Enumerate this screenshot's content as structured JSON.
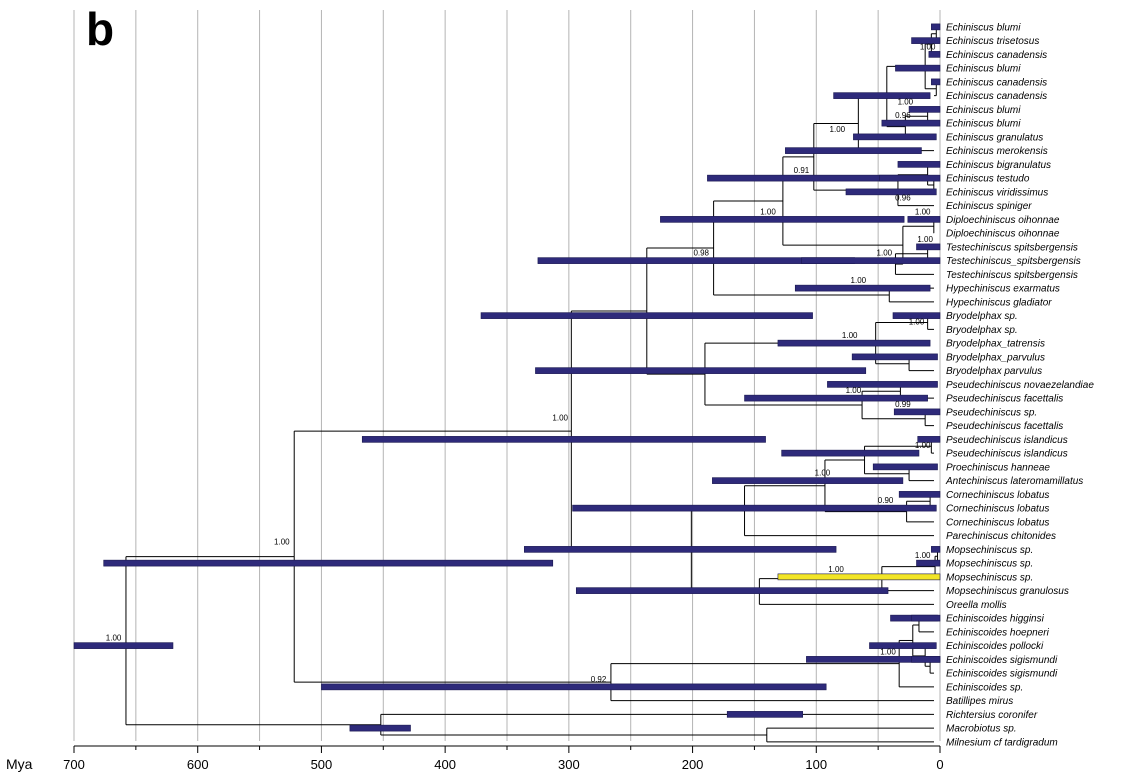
{
  "panel_label": "b",
  "axis": {
    "unit_label": "Mya",
    "ticks": [
      700,
      600,
      500,
      400,
      300,
      200,
      100,
      0
    ]
  },
  "taxa": [
    "Echiniscus blumi",
    "Echiniscus trisetosus",
    "Echiniscus canadensis",
    "Echiniscus blumi",
    "Echiniscus canadensis",
    "Echiniscus canadensis",
    "Echiniscus blumi",
    "Echiniscus blumi",
    "Echiniscus granulatus",
    "Echiniscus merokensis",
    "Echiniscus bigranulatus",
    "Echiniscus testudo",
    "Echiniscus viridissimus",
    "Echiniscus spiniger",
    "Diploechiniscus oihonnae",
    "Diploechiniscus oihonnae",
    "Testechiniscus spitsbergensis",
    "Testechiniscus_spitsbergensis",
    "Testechiniscus spitsbergensis",
    "Hypechiniscus exarmatus",
    "Hypechiniscus gladiator",
    "Bryodelphax sp.",
    "Bryodelphax sp.",
    "Bryodelphax_tatrensis",
    "Bryodelphax_parvulus",
    "Bryodelphax parvulus",
    "Pseudechiniscus novaezelandiae",
    "Pseudechiniscus facettalis",
    "Pseudechiniscus sp.",
    "Pseudechiniscus facettalis",
    "Pseudechiniscus islandicus",
    "Pseudechiniscus islandicus",
    "Proechiniscus hanneae",
    "Antechiniscus lateromamillatus",
    "Cornechiniscus lobatus",
    "Cornechiniscus lobatus",
    "Cornechiniscus lobatus",
    "Parechiniscus chitonides",
    "Mopsechiniscus sp.",
    "Mopsechiniscus sp.",
    "Mopsechiniscus sp.",
    "Mopsechiniscus granulosus",
    "Oreella mollis",
    "Echiniscoides higginsi",
    "Echiniscoides hoepneri",
    "Echiniscoides pollocki",
    "Echiniscoides sigismundi",
    "Echiniscoides sigismundi",
    "Echiniscoides sp.",
    "Batillipes mirus",
    "Richtersius coronifer",
    "Macrobiotus sp.",
    "Milnesium cf tardigradum"
  ],
  "colors": {
    "bar_fill": "#2e2a7a",
    "bar_highlight": "#f2e526",
    "branch": "#000000",
    "gridline": "#b4b4b4"
  },
  "nodes": [
    {
      "id": "root",
      "age": 658,
      "hpd": [
        700,
        620
      ],
      "support": "1.00",
      "children": [
        "ingroup",
        "outgroup"
      ]
    },
    {
      "id": "outgroup",
      "age": 452,
      "hpd": [
        477,
        428
      ],
      "support": "",
      "children": [
        "t50",
        "eutar"
      ]
    },
    {
      "id": "eutar",
      "age": 140,
      "hpd": [
        172,
        111
      ],
      "support": "",
      "children": [
        "t51",
        "t52"
      ]
    },
    {
      "id": "ingroup",
      "age": 522,
      "hpd": [
        500,
        92
      ],
      "support": "",
      "children": [
        "echiniscid",
        "arthrotar"
      ]
    },
    {
      "id": "arthrotar",
      "age": 266,
      "hpd": [
        500,
        92
      ],
      "support": "0.92",
      "children": [
        "echiniscoidea",
        "t49"
      ]
    },
    {
      "id": "echiniscoidea",
      "age": 33,
      "hpd": [
        108,
        0
      ],
      "support": "",
      "children": [
        "ech1",
        "t48"
      ]
    },
    {
      "id": "ech1",
      "age": 22,
      "hpd": [
        57,
        3
      ],
      "support": "1.00",
      "children": [
        "t45",
        "ech2"
      ]
    },
    {
      "id": "ech2",
      "age": 8,
      "hpd": [
        23,
        0
      ],
      "support": "",
      "children": [
        "t46",
        "t47"
      ]
    },
    {
      "id": "ech3",
      "age": 17,
      "hpd": [
        40,
        2
      ],
      "support": "",
      "children": [
        "t43",
        "t44"
      ]
    },
    {
      "id": "echiniscid",
      "age": 298,
      "hpd": [
        467,
        141
      ],
      "support": "1.00",
      "children": [
        "upper",
        "mid"
      ]
    },
    {
      "id": "upper",
      "age": 237,
      "hpd": [
        371,
        103
      ],
      "support": "",
      "children": [
        "echin_grp",
        "bryo_grp"
      ]
    },
    {
      "id": "echin_grp",
      "age": 183,
      "hpd": [
        325,
        69
      ],
      "support": "0.98",
      "children": [
        "echin_core",
        "hyp"
      ]
    },
    {
      "id": "echin_core",
      "age": 127,
      "hpd": [
        226,
        29
      ],
      "support": "1.00",
      "children": [
        "echin_main",
        "diplo"
      ]
    },
    {
      "id": "echin_main",
      "age": 102,
      "hpd": [
        188,
        34
      ],
      "support": "0.91",
      "children": [
        "ech_a",
        "ech_b"
      ]
    },
    {
      "id": "ech_a",
      "age": 66,
      "hpd": [
        125,
        15
      ],
      "support": "",
      "children": [
        "ech_a1",
        "ech_a2"
      ]
    },
    {
      "id": "ech_a1",
      "age": 43,
      "hpd": [
        86,
        8
      ],
      "support": "",
      "children": [
        "ech_blumi_clade",
        "ech_a3"
      ]
    },
    {
      "id": "ech_blumi_clade",
      "age": 12,
      "hpd": [
        36,
        0
      ],
      "support": "",
      "children": [
        "ech_top",
        "ech_can"
      ]
    },
    {
      "id": "ech_top",
      "age": 7,
      "hpd": [
        23,
        0
      ],
      "support": "",
      "children": [
        "ech_top1",
        "t2"
      ]
    },
    {
      "id": "ech_top1",
      "age": 3,
      "hpd": [
        7,
        0
      ],
      "support": "",
      "children": [
        "t0",
        "t1"
      ]
    },
    {
      "id": "ech_can",
      "age": 3,
      "hpd": [
        7,
        0
      ],
      "support": "",
      "children": [
        "t4",
        "t5"
      ]
    },
    {
      "id": "ech_a3",
      "age": 28,
      "hpd": [
        70,
        3
      ],
      "support": "1.00",
      "children": [
        "ech_bb",
        "t8"
      ]
    },
    {
      "id": "ech_bb",
      "age": 10,
      "hpd": [
        47,
        0
      ],
      "support": "0.96",
      "children": [
        "t6",
        "t7"
      ]
    },
    {
      "id": "ech_a2",
      "age": 3,
      "hpd": [
        8,
        0
      ],
      "support": "",
      "children": [
        "t3",
        "ech_a2b"
      ]
    },
    {
      "id": "ech_b",
      "age": 34,
      "hpd": [
        76,
        3
      ],
      "support": "",
      "children": [
        "ech_b1",
        "t13"
      ]
    },
    {
      "id": "ech_b1",
      "age": 10,
      "hpd": [
        48,
        0
      ],
      "support": "",
      "children": [
        "t10",
        "ech_b2"
      ]
    },
    {
      "id": "ech_b2",
      "age": 5,
      "hpd": [
        34,
        0
      ],
      "support": "0.96",
      "children": [
        "t11",
        "t12"
      ]
    },
    {
      "id": "diplo",
      "age": 5,
      "hpd": [
        26,
        0
      ],
      "support": "1.00",
      "children": [
        "t14",
        "t15"
      ]
    },
    {
      "id": "testech",
      "age": 36,
      "hpd": [
        112,
        0
      ],
      "support": "1.00",
      "children": [
        "testech1",
        "t18"
      ]
    },
    {
      "id": "testech1",
      "age": 10,
      "hpd": [
        19,
        0
      ],
      "support": "1.00",
      "children": [
        "t16",
        "t17"
      ]
    },
    {
      "id": "hyp",
      "age": 41,
      "hpd": [
        117,
        8
      ],
      "support": "1.00",
      "children": [
        "t19",
        "t20"
      ]
    },
    {
      "id": "bryo_grp",
      "age": 190,
      "hpd": [
        327,
        60
      ],
      "support": "",
      "children": [
        "bryo",
        "pseudo"
      ]
    },
    {
      "id": "bryo",
      "age": 52,
      "hpd": [
        131,
        8
      ],
      "support": "1.00",
      "children": [
        "bryo1",
        "bryo2"
      ]
    },
    {
      "id": "bryo1",
      "age": 10,
      "hpd": [
        38,
        0
      ],
      "support": "1.00",
      "children": [
        "t21",
        "t22"
      ]
    },
    {
      "id": "bryo2",
      "age": 25,
      "hpd": [
        71,
        2
      ],
      "support": "",
      "children": [
        "t24",
        "t25"
      ]
    },
    {
      "id": "pseudo",
      "age": 63,
      "hpd": [
        158,
        10
      ],
      "support": "1.00",
      "children": [
        "pseudo1",
        "pseudo2"
      ]
    },
    {
      "id": "pseudo1",
      "age": 32,
      "hpd": [
        91,
        2
      ],
      "support": "",
      "children": [
        "t26",
        "t27"
      ]
    },
    {
      "id": "pseudo2",
      "age": 12,
      "hpd": [
        37,
        0
      ],
      "support": "0.99",
      "children": [
        "t28",
        "t29"
      ]
    },
    {
      "id": "mid",
      "age": 201,
      "hpd": [
        337,
        84
      ],
      "support": "",
      "children": [
        "proech_grp",
        "mops_grp"
      ]
    },
    {
      "id": "proech_grp",
      "age": 158,
      "hpd": [
        297,
        3
      ],
      "support": "",
      "children": [
        "cornech_grp",
        "t37"
      ]
    },
    {
      "id": "cornech_grp",
      "age": 93,
      "hpd": [
        184,
        30
      ],
      "support": "1.00",
      "children": [
        "pseisl",
        "cornech"
      ]
    },
    {
      "id": "pseisl",
      "age": 61,
      "hpd": [
        128,
        17
      ],
      "support": "",
      "children": [
        "pseisl1",
        "proech"
      ]
    },
    {
      "id": "pseisl1",
      "age": 7,
      "hpd": [
        18,
        0
      ],
      "support": "1.00",
      "children": [
        "t30",
        "t31"
      ]
    },
    {
      "id": "proech",
      "age": 25,
      "hpd": [
        54,
        2
      ],
      "support": "",
      "children": [
        "t32",
        "t33"
      ]
    },
    {
      "id": "cornech",
      "age": 27,
      "hpd": [
        33,
        0
      ],
      "support": "0.90",
      "children": [
        "cornech1",
        "t36"
      ]
    },
    {
      "id": "cornech1",
      "age": 8,
      "hpd": [
        25,
        0
      ],
      "support": "",
      "children": [
        "t34",
        "t35"
      ]
    },
    {
      "id": "mops_grp",
      "age": 146,
      "hpd": [
        294,
        42
      ],
      "support": "",
      "children": [
        "mops",
        "t42"
      ]
    },
    {
      "id": "mops",
      "age": 47,
      "hpd": [
        131,
        0
      ],
      "support": "1.00",
      "children": [
        "mops1",
        "t41"
      ]
    },
    {
      "id": "mops1",
      "age": 4,
      "hpd": [
        19,
        0
      ],
      "support": "1.00",
      "children": [
        "mops2",
        "t40"
      ]
    },
    {
      "id": "mops2",
      "age": 2,
      "hpd": [
        7,
        0
      ],
      "support": "",
      "children": [
        "t38",
        "t39"
      ]
    }
  ],
  "support_labels": [
    {
      "text": "1.00",
      "age": 668,
      "row": 45.5
    },
    {
      "text": "1.00",
      "age": 532,
      "row": 38.5
    },
    {
      "text": "1.00",
      "age": 307,
      "row": 29.5
    },
    {
      "text": "0.92",
      "age": 276,
      "row": 48.5
    },
    {
      "text": "0.98",
      "age": 193,
      "row": 17.5
    },
    {
      "text": "0.91",
      "age": 112,
      "row": 11.5
    },
    {
      "text": "1.00",
      "age": 139,
      "row": 14.5
    },
    {
      "text": "1.00",
      "age": 95,
      "row": 33.5
    },
    {
      "text": "1.00",
      "age": 84,
      "row": 40.5
    },
    {
      "text": "1.00",
      "age": 73,
      "row": 23.5
    },
    {
      "text": "1.00",
      "age": 66,
      "row": 19.5
    },
    {
      "text": "1.00",
      "age": 70,
      "row": 27.5
    },
    {
      "text": "1.00",
      "age": 45,
      "row": 17.5
    },
    {
      "text": "1.00",
      "age": 83,
      "row": 8.5
    },
    {
      "text": "0.90",
      "age": 44,
      "row": 35.5
    },
    {
      "text": "1.00",
      "age": 42,
      "row": 46.5
    },
    {
      "text": "1.00",
      "age": 28,
      "row": 6.5
    },
    {
      "text": "1.00",
      "age": 19,
      "row": 22.5
    },
    {
      "text": "1.00",
      "age": 14,
      "row": 31.5
    },
    {
      "text": "1.00",
      "age": 14,
      "row": 39.5
    },
    {
      "text": "1.00",
      "age": 14,
      "row": 14.5
    },
    {
      "text": "1.00",
      "age": 10,
      "row": 2.5
    },
    {
      "text": "1.00",
      "age": 12,
      "row": 16.5
    },
    {
      "text": "0.96",
      "age": 30,
      "row": 7.5
    },
    {
      "text": "0.96",
      "age": 30,
      "row": 13.5
    },
    {
      "text": "0.99",
      "age": 30,
      "row": 28.5
    }
  ],
  "bars": [
    {
      "hpd": [
        700,
        620
      ],
      "row": 45.5,
      "color": "dark"
    },
    {
      "hpd": [
        676,
        313
      ],
      "row": 39.5,
      "color": "dark"
    },
    {
      "hpd": [
        500,
        92
      ],
      "row": 48.5,
      "color": "dark"
    },
    {
      "hpd": [
        467,
        141
      ],
      "row": 30.5,
      "color": "dark"
    },
    {
      "hpd": [
        477,
        428
      ],
      "row": 51.5,
      "color": "dark"
    },
    {
      "hpd": [
        371,
        103
      ],
      "row": 21.5,
      "color": "dark"
    },
    {
      "hpd": [
        336,
        84
      ],
      "row": 38.5,
      "color": "dark"
    },
    {
      "hpd": [
        327,
        60
      ],
      "row": 25.5,
      "color": "dark"
    },
    {
      "hpd": [
        325,
        69
      ],
      "row": 17.5,
      "color": "dark"
    },
    {
      "hpd": [
        297,
        3
      ],
      "row": 35.5,
      "color": "dark"
    },
    {
      "hpd": [
        294,
        42
      ],
      "row": 41.5,
      "color": "dark"
    },
    {
      "hpd": [
        226,
        29
      ],
      "row": 14.5,
      "color": "dark"
    },
    {
      "hpd": [
        188,
        34
      ],
      "row": 11.5,
      "color": "dark"
    },
    {
      "hpd": [
        184,
        30
      ],
      "row": 33.5,
      "color": "dark"
    },
    {
      "hpd": [
        172,
        111
      ],
      "row": 50.5,
      "color": "dark"
    },
    {
      "hpd": [
        158,
        10
      ],
      "row": 27.5,
      "color": "dark"
    },
    {
      "hpd": [
        131,
        8
      ],
      "row": 23.5,
      "color": "dark"
    },
    {
      "hpd": [
        131,
        0
      ],
      "row": 40.5,
      "color": "highlight"
    },
    {
      "hpd": [
        128,
        17
      ],
      "row": 31.5,
      "color": "dark"
    },
    {
      "hpd": [
        125,
        15
      ],
      "row": 9.5,
      "color": "dark"
    },
    {
      "hpd": [
        117,
        8
      ],
      "row": 19.5,
      "color": "dark"
    },
    {
      "hpd": [
        112,
        0
      ],
      "row": 17.5,
      "color": "dark"
    },
    {
      "hpd": [
        108,
        0
      ],
      "row": 46.5,
      "color": "dark"
    },
    {
      "hpd": [
        91,
        2
      ],
      "row": 26.5,
      "color": "dark"
    },
    {
      "hpd": [
        86,
        8
      ],
      "row": 5.5,
      "color": "dark"
    },
    {
      "hpd": [
        76,
        3
      ],
      "row": 12.5,
      "color": "dark"
    },
    {
      "hpd": [
        71,
        2
      ],
      "row": 24.5,
      "color": "dark"
    },
    {
      "hpd": [
        70,
        3
      ],
      "row": 8.5,
      "color": "dark"
    },
    {
      "hpd": [
        57,
        3
      ],
      "row": 45.5,
      "color": "dark"
    },
    {
      "hpd": [
        54,
        2
      ],
      "row": 32.5,
      "color": "dark"
    },
    {
      "hpd": [
        49,
        0
      ],
      "row": 11.5,
      "color": "dark"
    },
    {
      "hpd": [
        47,
        0
      ],
      "row": 7.5,
      "color": "dark"
    },
    {
      "hpd": [
        40,
        2
      ],
      "row": 43.5,
      "color": "dark"
    },
    {
      "hpd": [
        38,
        0
      ],
      "row": 21.5,
      "color": "dark"
    },
    {
      "hpd": [
        37,
        0
      ],
      "row": 28.5,
      "color": "dark"
    },
    {
      "hpd": [
        36,
        0
      ],
      "row": 3.5,
      "color": "dark"
    },
    {
      "hpd": [
        34,
        0
      ],
      "row": 10.5,
      "color": "dark"
    },
    {
      "hpd": [
        33,
        0
      ],
      "row": 34.5,
      "color": "dark"
    },
    {
      "hpd": [
        26,
        0
      ],
      "row": 14.5,
      "color": "dark"
    },
    {
      "hpd": [
        25,
        0
      ],
      "row": 6.5,
      "color": "dark"
    },
    {
      "hpd": [
        23,
        0
      ],
      "row": 1.5,
      "color": "dark"
    },
    {
      "hpd": [
        23,
        0
      ],
      "row": 43.5,
      "color": "dark"
    },
    {
      "hpd": [
        23,
        0
      ],
      "row": 46.5,
      "color": "dark"
    },
    {
      "hpd": [
        19,
        0
      ],
      "row": 16.5,
      "color": "dark"
    },
    {
      "hpd": [
        19,
        0
      ],
      "row": 39.5,
      "color": "dark"
    },
    {
      "hpd": [
        18,
        0
      ],
      "row": 30.5,
      "color": "dark"
    },
    {
      "hpd": [
        9,
        0
      ],
      "row": 2.5,
      "color": "dark"
    },
    {
      "hpd": [
        7,
        0
      ],
      "row": 38.5,
      "color": "dark"
    },
    {
      "hpd": [
        7,
        0
      ],
      "row": 0.5,
      "color": "dark"
    },
    {
      "hpd": [
        7,
        0
      ],
      "row": 4.5,
      "color": "dark"
    }
  ]
}
